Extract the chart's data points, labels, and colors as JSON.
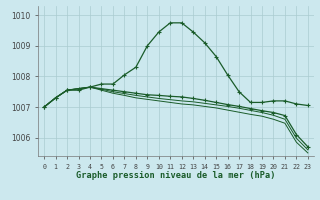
{
  "title": "Graphe pression niveau de la mer (hPa)",
  "background_color": "#cce8ee",
  "grid_color": "#aaccd0",
  "line_color": "#1a5c2a",
  "x_labels": [
    "0",
    "1",
    "2",
    "3",
    "4",
    "5",
    "6",
    "7",
    "8",
    "9",
    "10",
    "11",
    "12",
    "13",
    "14",
    "15",
    "16",
    "17",
    "18",
    "19",
    "20",
    "21",
    "22",
    "23"
  ],
  "ylim": [
    1005.4,
    1010.3
  ],
  "yticks": [
    1006,
    1007,
    1008,
    1009,
    1010
  ],
  "line1": [
    1007.0,
    1007.3,
    1007.55,
    1007.55,
    1007.65,
    1007.75,
    1007.75,
    1008.05,
    1008.3,
    1009.0,
    1009.45,
    1009.75,
    1009.75,
    1009.45,
    1009.1,
    1008.65,
    1008.05,
    1007.5,
    1007.15,
    1007.15,
    1007.2,
    1007.2,
    1007.1,
    1007.05
  ],
  "line2": [
    1007.0,
    1007.3,
    1007.55,
    1007.6,
    1007.65,
    1007.6,
    1007.55,
    1007.5,
    1007.45,
    1007.4,
    1007.38,
    1007.35,
    1007.33,
    1007.28,
    1007.22,
    1007.15,
    1007.08,
    1007.02,
    1006.95,
    1006.88,
    1006.82,
    1006.72,
    1006.1,
    1005.7
  ],
  "line3": [
    1007.0,
    1007.3,
    1007.55,
    1007.6,
    1007.65,
    1007.58,
    1007.5,
    1007.44,
    1007.38,
    1007.33,
    1007.28,
    1007.24,
    1007.2,
    1007.17,
    1007.12,
    1007.07,
    1007.02,
    1006.96,
    1006.89,
    1006.82,
    1006.73,
    1006.6,
    1005.98,
    1005.6
  ],
  "line4": [
    1007.0,
    1007.3,
    1007.55,
    1007.6,
    1007.65,
    1007.55,
    1007.45,
    1007.38,
    1007.3,
    1007.25,
    1007.2,
    1007.15,
    1007.1,
    1007.07,
    1007.02,
    1006.97,
    1006.9,
    1006.83,
    1006.76,
    1006.7,
    1006.6,
    1006.47,
    1005.85,
    1005.5
  ]
}
